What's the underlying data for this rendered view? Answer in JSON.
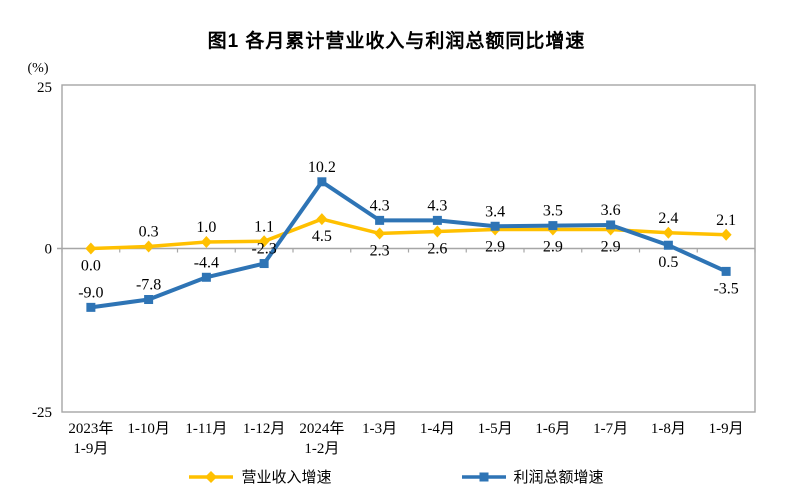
{
  "title": "图1  各月累计营业收入与利润总额同比增速",
  "y_axis": {
    "unit": "(%)",
    "tick_labels": [
      "25",
      "0",
      "-25"
    ]
  },
  "chart_data": {
    "type": "line",
    "title": "图1  各月累计营业收入与利润总额同比增速",
    "ylabel": "(%)",
    "ylim": [
      -25,
      25
    ],
    "yticks": [
      25,
      0,
      -25
    ],
    "grid": false,
    "legend_position": "bottom",
    "categories": [
      [
        "2023年",
        "1-9月"
      ],
      [
        "1-10月"
      ],
      [
        "1-11月"
      ],
      [
        "1-12月"
      ],
      [
        "2024年",
        "1-2月"
      ],
      [
        "1-3月"
      ],
      [
        "1-4月"
      ],
      [
        "1-5月"
      ],
      [
        "1-6月"
      ],
      [
        "1-7月"
      ],
      [
        "1-8月"
      ],
      [
        "1-9月"
      ]
    ],
    "series": [
      {
        "name": "营业收入增速",
        "color": "#FFC000",
        "marker": "diamond",
        "values": [
          0.0,
          0.3,
          1.0,
          1.1,
          4.5,
          2.3,
          2.6,
          2.9,
          2.9,
          2.9,
          2.4,
          2.1
        ],
        "label_pos": [
          "below",
          "above",
          "above",
          "above",
          "below",
          "below",
          "below",
          "below",
          "below",
          "below",
          "above",
          "above"
        ]
      },
      {
        "name": "利润总额增速",
        "color": "#2E74B5",
        "marker": "square",
        "values": [
          -9.0,
          -7.8,
          -4.4,
          -2.3,
          10.2,
          4.3,
          4.3,
          3.4,
          3.5,
          3.6,
          0.5,
          -3.5
        ],
        "label_pos": [
          "above",
          "above",
          "above",
          "above",
          "above",
          "above",
          "above",
          "above",
          "above",
          "above",
          "below",
          "below"
        ]
      }
    ]
  },
  "colors": {
    "axis": "#A6A6A6",
    "text": "#000000"
  }
}
